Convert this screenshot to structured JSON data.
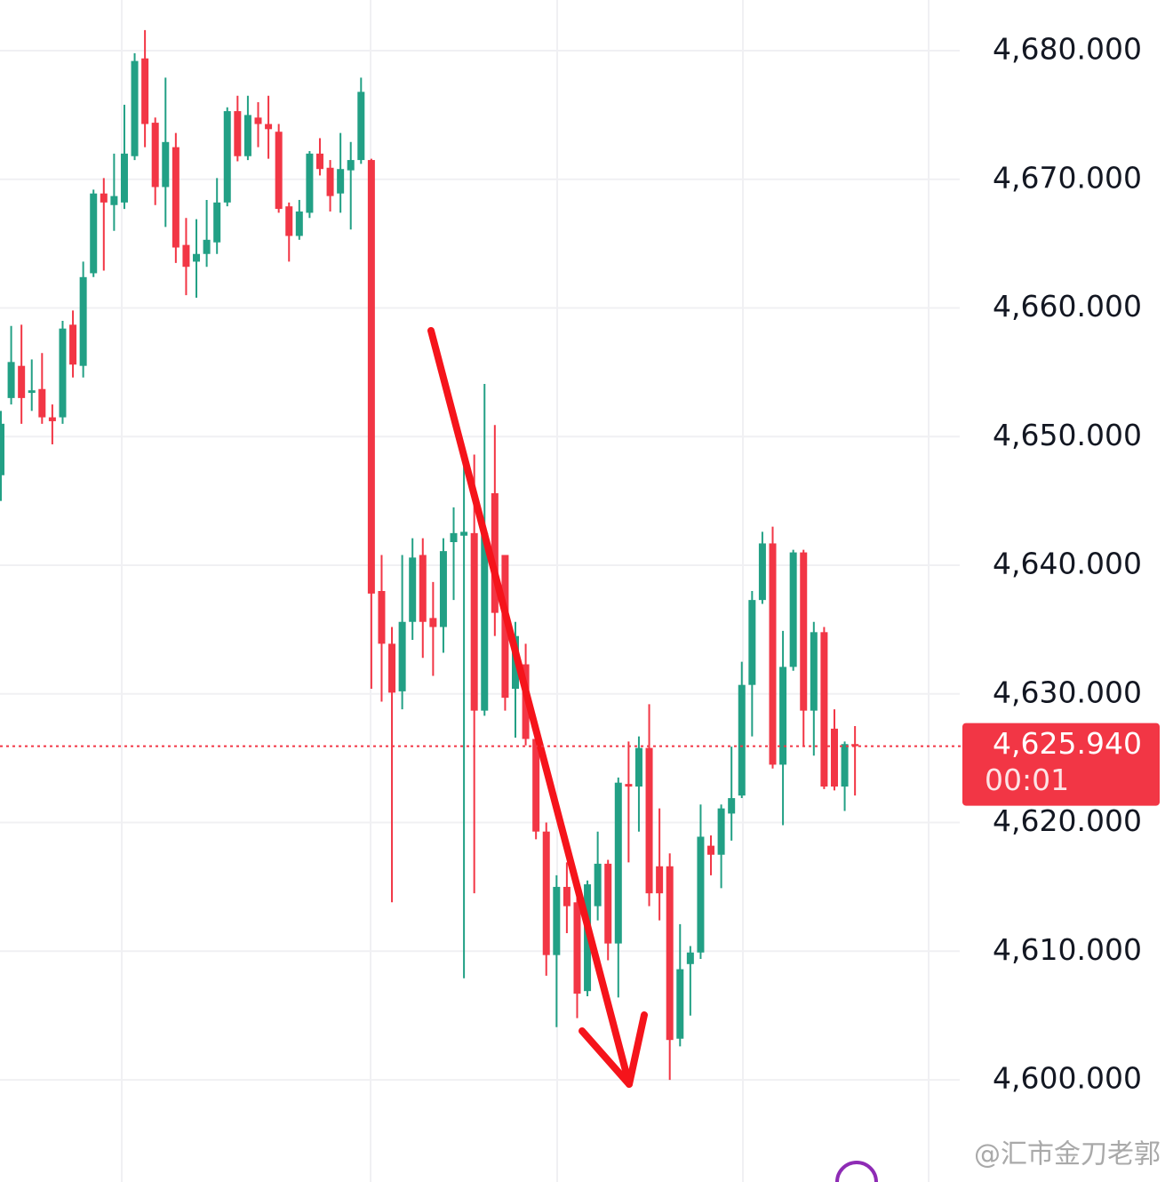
{
  "chart_data": {
    "type": "candlestick",
    "up_color": "#22a085",
    "down_color": "#f23645",
    "ylim": [
      4592.06,
      4683.94
    ],
    "yticks": [
      {
        "value": 4680,
        "label": "4,680.000"
      },
      {
        "value": 4670,
        "label": "4,670.000"
      },
      {
        "value": 4660,
        "label": "4,660.000"
      },
      {
        "value": 4650,
        "label": "4,650.000"
      },
      {
        "value": 4640,
        "label": "4,640.000"
      },
      {
        "value": 4630,
        "label": "4,630.000"
      },
      {
        "value": 4620,
        "label": "4,620.000"
      },
      {
        "value": 4610,
        "label": "4,610.000"
      },
      {
        "value": 4600,
        "label": "4,600.000"
      }
    ],
    "grid": true,
    "last_price": {
      "value": 4625.94,
      "label": "4,625.940"
    },
    "countdown": "00:01",
    "watermark": "@汇市金刀老郭",
    "open": [
      4647,
      4653,
      4655.5,
      4653.4,
      4653.7,
      4651.5,
      4651.5,
      4658.7,
      4655.5,
      4662.7,
      4668.9,
      4668,
      4668.2,
      4671.8,
      4679.4,
      4674.4,
      4669.4,
      4672.5,
      4664.9,
      4663.6,
      4664.2,
      4665.1,
      4668.2,
      4675.3,
      4671.8,
      4674.8,
      4674.3,
      4673.7,
      4667.9,
      4665.6,
      4667.4,
      4672,
      4670.9,
      4668.9,
      4670.7,
      4671.5,
      4671.5,
      4638,
      4633.9,
      4630.2,
      4635.6,
      4640.8,
      4635.9,
      4635.2,
      4641.8,
      4642.3,
      4642.5,
      4628.7,
      4645.6,
      4640.8,
      4630.4,
      4632.3,
      4626.5,
      4619.3,
      4609.7,
      4615,
      4613.8,
      4606.9,
      4613.5,
      4616.8,
      4610.6,
      4623,
      4622.8,
      4625.8,
      4616.6,
      4616.6,
      4603.2,
      4609,
      4609.9,
      4618.2,
      4617.5,
      4620.7,
      4622.1,
      4630.7,
      4637.3,
      4641.7,
      4624.5,
      4632.1,
      4641,
      4628.7,
      4634.8,
      4627.3,
      4622.8,
      4626.1
    ],
    "high": [
      4652,
      4658.6,
      4658.7,
      4656,
      4656.5,
      4652.5,
      4659,
      4659.8,
      4663.6,
      4669.2,
      4670.1,
      4672,
      4675.8,
      4679.8,
      4681.6,
      4674.8,
      4677.9,
      4673.6,
      4667,
      4666.9,
      4668.4,
      4670.1,
      4675.6,
      4676.5,
      4676.5,
      4676,
      4676.5,
      4674.3,
      4668.2,
      4668.4,
      4672.2,
      4673.2,
      4671.5,
      4673.6,
      4672.9,
      4677.9,
      4671.6,
      4640.8,
      4635.2,
      4640.8,
      4642.1,
      4642.1,
      4638.7,
      4642.1,
      4644.5,
      4648.4,
      4648.6,
      4654.1,
      4650.9,
      4640.8,
      4635.6,
      4633.9,
      4626.5,
      4620,
      4615.9,
      4616.9,
      4614.5,
      4615.5,
      4619.3,
      4617.1,
      4623.5,
      4626.3,
      4626.7,
      4629.2,
      4621.1,
      4617.6,
      4612.1,
      4610.4,
      4621.4,
      4619,
      4621.4,
      4625.9,
      4632.5,
      4638,
      4642.6,
      4643,
      4634.9,
      4641.2,
      4641.2,
      4635.6,
      4635.2,
      4628.8,
      4626.3,
      4627.5
    ],
    "low": [
      4645,
      4652.5,
      4651,
      4652,
      4651,
      4649.4,
      4651,
      4654.6,
      4654.6,
      4662.4,
      4662.9,
      4666,
      4667.7,
      4671.5,
      4672.5,
      4668,
      4666.3,
      4663.5,
      4661,
      4660.8,
      4663.2,
      4664.2,
      4667.9,
      4671.4,
      4671.5,
      4672.5,
      4671.6,
      4667.4,
      4663.6,
      4665.3,
      4667,
      4670.3,
      4667.5,
      4667.4,
      4666.1,
      4671.2,
      4630.4,
      4629.4,
      4613.8,
      4628.8,
      4634.2,
      4632.8,
      4631.4,
      4633.2,
      4637.3,
      4607.9,
      4614.5,
      4628.3,
      4634.5,
      4628.7,
      4626.6,
      4626,
      4618.7,
      4608.1,
      4604.1,
      4611.4,
      4604.8,
      4606.5,
      4612.4,
      4609.3,
      4606.4,
      4616.9,
      4619.3,
      4613.5,
      4612.4,
      4600,
      4602.6,
      4605,
      4609.4,
      4615.9,
      4614.9,
      4618.6,
      4621.9,
      4626.7,
      4637,
      4624.2,
      4619.8,
      4631.8,
      4626,
      4625.2,
      4622.6,
      4622.5,
      4620.9,
      4622.1
    ],
    "close": [
      4651,
      4655.8,
      4653,
      4653.6,
      4651.5,
      4651.2,
      4658.4,
      4655.6,
      4662.4,
      4668.9,
      4668.2,
      4668.7,
      4672,
      4679.2,
      4674.3,
      4669.4,
      4672.9,
      4664.7,
      4663.2,
      4664.2,
      4665.3,
      4668.2,
      4675.3,
      4671.8,
      4675,
      4674.3,
      4673.9,
      4667.7,
      4665.6,
      4667.5,
      4672,
      4670.8,
      4668.7,
      4670.8,
      4671.5,
      4676.8,
      4637.8,
      4633.9,
      4630.1,
      4635.6,
      4640.6,
      4635.6,
      4635.2,
      4641.1,
      4642.5,
      4642.6,
      4628.7,
      4642.5,
      4636.3,
      4629.7,
      4634.5,
      4626.5,
      4619.3,
      4609.7,
      4615,
      4613.5,
      4606.7,
      4615.2,
      4616.8,
      4610.6,
      4623.1,
      4622.8,
      4625.8,
      4614.5,
      4614.5,
      4603.1,
      4608.6,
      4609.9,
      4618.9,
      4617.5,
      4621.1,
      4621.9,
      4630.7,
      4637.3,
      4641.7,
      4624.5,
      4632.1,
      4641,
      4628.7,
      4634.8,
      4622.8,
      4622.8,
      4626.1,
      4625.94
    ]
  }
}
